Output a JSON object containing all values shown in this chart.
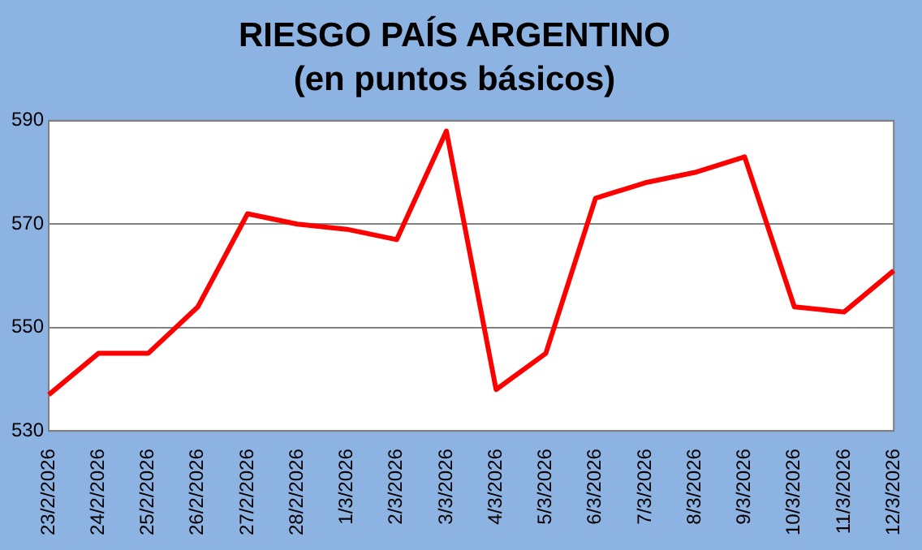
{
  "chart_data": {
    "type": "line",
    "title": "RIESGO PAÍS ARGENTINO",
    "subtitle": "(en puntos básicos)",
    "categories": [
      "23/2/2026",
      "24/2/2026",
      "25/2/2026",
      "26/2/2026",
      "27/2/2026",
      "28/2/2026",
      "1/3/2026",
      "2/3/2026",
      "3/3/2026",
      "4/3/2026",
      "5/3/2026",
      "6/3/2026",
      "7/3/2026",
      "8/3/2026",
      "9/3/2026",
      "10/3/2026",
      "11/3/2026",
      "12/3/2026"
    ],
    "series": [
      {
        "color": "#ff0000",
        "values": [
          537,
          545,
          545,
          554,
          572,
          570,
          569,
          567,
          588,
          538,
          545,
          575,
          578,
          580,
          583,
          554,
          553,
          561
        ]
      }
    ],
    "ylim": [
      530,
      590
    ],
    "yticks": [
      530,
      550,
      570,
      590
    ],
    "grid": "y",
    "legend": false,
    "marker": "none",
    "line_style": "solid"
  }
}
